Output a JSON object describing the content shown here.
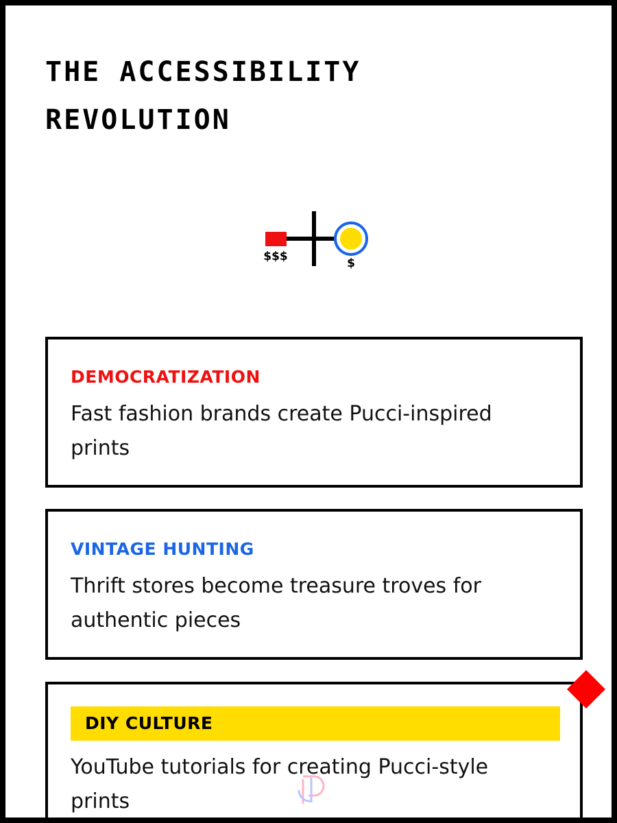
{
  "page": {
    "title": "The Accessibility Revolution"
  },
  "scale_graphic": {
    "left_label": "$$$",
    "right_label": "$",
    "left_color": "#ef1111",
    "right_fill": "#ffdd00",
    "right_ring": "#1a66e6"
  },
  "cards": [
    {
      "label": "DEMOCRATIZATION",
      "text": "Fast fashion brands create Pucci-inspired prints",
      "label_color": "#ef1111"
    },
    {
      "label": "VINTAGE HUNTING",
      "text": "Thrift stores become treasure troves for authentic pieces",
      "label_color": "#1a66e6"
    },
    {
      "label": "DIY CULTURE",
      "text": "YouTube tutorials for creating Pucci-style prints",
      "label_band_color": "#ffdd00"
    }
  ],
  "decorations": {
    "diamond_color": "#ff0000",
    "watermark_icon": "logo-watermark-icon"
  }
}
